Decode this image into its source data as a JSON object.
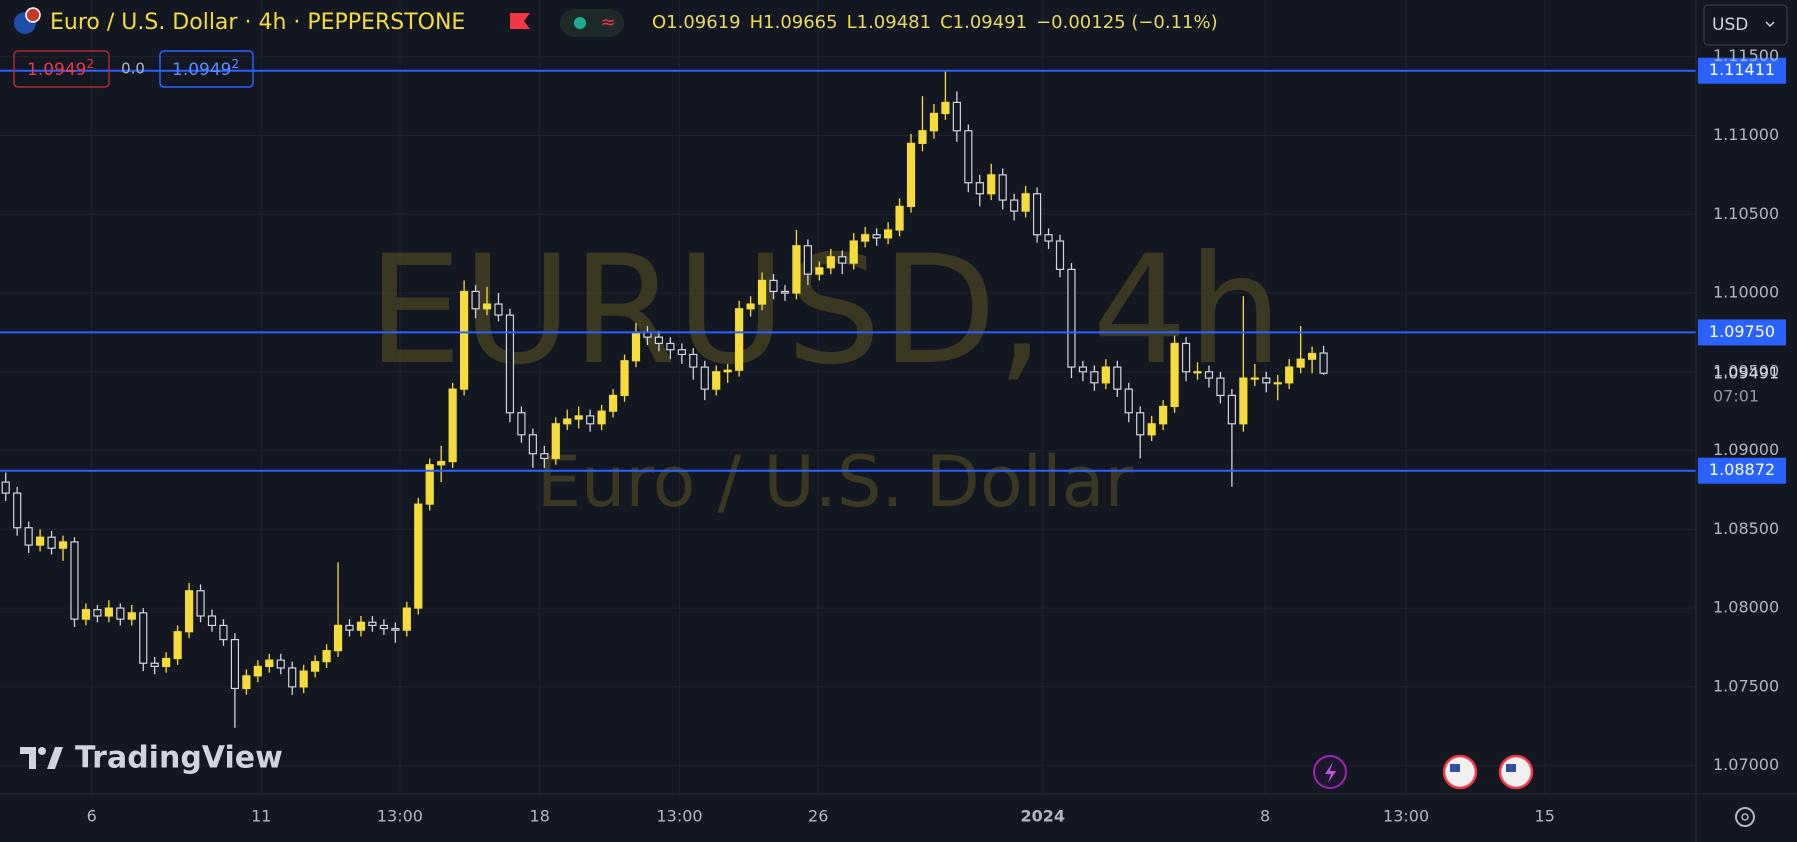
{
  "chart_data": {
    "type": "candlestick",
    "header": {
      "title": "Euro / U.S. Dollar · 4h · PEPPERSTONE",
      "legend": [
        {
          "key": "O",
          "value": "1.09619"
        },
        {
          "key": "H",
          "value": "1.09665"
        },
        {
          "key": "L",
          "value": "1.09481"
        },
        {
          "key": "C",
          "value": "1.09491"
        }
      ],
      "change": "−0.00125 (−0.11%)"
    },
    "trade_buttons": {
      "sell": {
        "main": "1.0949",
        "sup": "2"
      },
      "spread": "0.0",
      "buy": {
        "main": "1.0949",
        "sup": "2"
      }
    },
    "currency": "USD",
    "watermark": "EURUSD, 4h",
    "watermark_sub": "Euro / U.S. Dollar",
    "brand": "TradingView",
    "up_color": "#f5dc3c",
    "down_color": "#d1d4dc",
    "level_color": "#2962ff",
    "grid": true,
    "xlim": [
      -0.5,
      147.5
    ],
    "ylim": [
      1.0682,
      1.1186
    ],
    "yticks": [
      {
        "value": 1.07,
        "label": "1.07000"
      },
      {
        "value": 1.075,
        "label": "1.07500"
      },
      {
        "value": 1.08,
        "label": "1.08000"
      },
      {
        "value": 1.085,
        "label": "1.08500"
      },
      {
        "value": 1.09,
        "label": "1.09000"
      },
      {
        "value": 1.095,
        "label": "1.09500"
      },
      {
        "value": 1.1,
        "label": "1.10000"
      },
      {
        "value": 1.105,
        "label": "1.10500"
      },
      {
        "value": 1.11,
        "label": "1.11000"
      },
      {
        "value": 1.115,
        "label": "1.11500"
      }
    ],
    "xticks": [
      {
        "value": 7.5,
        "label": "6"
      },
      {
        "value": 22.3,
        "label": "11"
      },
      {
        "value": 34.4,
        "label": "13:00"
      },
      {
        "value": 46.6,
        "label": "18"
      },
      {
        "value": 58.8,
        "label": "13:00"
      },
      {
        "value": 70.9,
        "label": "26"
      },
      {
        "value": 90.5,
        "label": "2024"
      },
      {
        "value": 109.9,
        "label": "8"
      },
      {
        "value": 122.2,
        "label": "13:00"
      },
      {
        "value": 134.3,
        "label": "15"
      }
    ],
    "levels": [
      1.11411,
      {
        "value": 1.0975,
        "label": "1.09750"
      },
      1.08872
    ],
    "last_price": 1.09491,
    "countdown": "07:01",
    "ohlc": [
      [
        1.088,
        1.0886,
        1.0868,
        1.0873
      ],
      [
        1.0873,
        1.0877,
        1.0846,
        1.0851
      ],
      [
        1.0851,
        1.0855,
        1.0835,
        1.084
      ],
      [
        1.084,
        1.085,
        1.0836,
        1.0845
      ],
      [
        1.0845,
        1.0849,
        1.0834,
        1.0838
      ],
      [
        1.0838,
        1.0846,
        1.083,
        1.0842
      ],
      [
        1.0842,
        1.0845,
        1.0788,
        1.0793
      ],
      [
        1.0793,
        1.0803,
        1.0789,
        1.0799
      ],
      [
        1.0799,
        1.0802,
        1.0791,
        1.0795
      ],
      [
        1.0795,
        1.0805,
        1.0791,
        1.08
      ],
      [
        1.08,
        1.0803,
        1.0789,
        1.0793
      ],
      [
        1.0793,
        1.0802,
        1.0789,
        1.0797
      ],
      [
        1.0797,
        1.08,
        1.076,
        1.0765
      ],
      [
        1.0765,
        1.0769,
        1.0758,
        1.0763
      ],
      [
        1.0763,
        1.0772,
        1.0759,
        1.0768
      ],
      [
        1.0768,
        1.0789,
        1.0764,
        1.0785
      ],
      [
        1.0785,
        1.0816,
        1.0781,
        1.0811
      ],
      [
        1.0811,
        1.0815,
        1.0791,
        1.0795
      ],
      [
        1.0795,
        1.0799,
        1.0785,
        1.0789
      ],
      [
        1.0789,
        1.0793,
        1.0776,
        1.078
      ],
      [
        1.078,
        1.0784,
        1.0724,
        1.0749
      ],
      [
        1.0749,
        1.0761,
        1.0745,
        1.0757
      ],
      [
        1.0757,
        1.0767,
        1.0753,
        1.0763
      ],
      [
        1.0763,
        1.0771,
        1.0759,
        1.0767
      ],
      [
        1.0767,
        1.0771,
        1.0758,
        1.0762
      ],
      [
        1.0762,
        1.0766,
        1.0745,
        1.075
      ],
      [
        1.075,
        1.0764,
        1.0746,
        1.076
      ],
      [
        1.076,
        1.077,
        1.0756,
        1.0766
      ],
      [
        1.0766,
        1.0777,
        1.0762,
        1.0773
      ],
      [
        1.0773,
        1.0829,
        1.0769,
        1.0789
      ],
      [
        1.0789,
        1.0793,
        1.0782,
        1.0786
      ],
      [
        1.0786,
        1.0795,
        1.0782,
        1.0791
      ],
      [
        1.0791,
        1.0795,
        1.0785,
        1.0789
      ],
      [
        1.0789,
        1.0793,
        1.0783,
        1.0787
      ],
      [
        1.0787,
        1.0791,
        1.0778,
        1.0786
      ],
      [
        1.0786,
        1.0804,
        1.0782,
        1.08
      ],
      [
        1.08,
        1.087,
        1.0796,
        1.0866
      ],
      [
        1.0866,
        1.0895,
        1.0862,
        1.0891
      ],
      [
        1.0891,
        1.0903,
        1.088,
        1.0893
      ],
      [
        1.0893,
        1.0943,
        1.0889,
        1.0939
      ],
      [
        1.0939,
        1.1008,
        1.0935,
        1.1001
      ],
      [
        1.1001,
        1.1005,
        1.0984,
        1.099
      ],
      [
        1.099,
        1.1004,
        1.0986,
        1.0993
      ],
      [
        1.0993,
        1.1,
        1.0982,
        1.0986
      ],
      [
        1.0986,
        1.099,
        1.0918,
        1.0924
      ],
      [
        1.0924,
        1.0928,
        1.0905,
        1.091
      ],
      [
        1.091,
        1.0914,
        1.0889,
        1.0898
      ],
      [
        1.0898,
        1.0903,
        1.0889,
        1.0895
      ],
      [
        1.0895,
        1.0921,
        1.0891,
        1.0917
      ],
      [
        1.0917,
        1.0926,
        1.0913,
        1.092
      ],
      [
        1.092,
        1.0928,
        1.0914,
        1.0922
      ],
      [
        1.0922,
        1.0926,
        1.0912,
        1.0917
      ],
      [
        1.0917,
        1.0929,
        1.0913,
        1.0925
      ],
      [
        1.0925,
        1.0939,
        1.0921,
        1.0935
      ],
      [
        1.0935,
        1.0961,
        1.0931,
        1.0957
      ],
      [
        1.0957,
        1.0981,
        1.0953,
        1.0975
      ],
      [
        1.0975,
        1.0979,
        1.0967,
        1.0972
      ],
      [
        1.0972,
        1.0976,
        1.0963,
        1.0968
      ],
      [
        1.0968,
        1.0972,
        1.0958,
        1.0964
      ],
      [
        1.0964,
        1.0968,
        1.0955,
        1.0961
      ],
      [
        1.0961,
        1.0965,
        1.0945,
        1.0953
      ],
      [
        1.0953,
        1.0957,
        1.0932,
        1.0939
      ],
      [
        1.0939,
        1.0954,
        1.0935,
        1.095
      ],
      [
        1.095,
        1.0955,
        1.0943,
        1.0951
      ],
      [
        1.0951,
        1.0995,
        1.0947,
        1.099
      ],
      [
        1.099,
        1.0998,
        1.0985,
        1.0993
      ],
      [
        1.0993,
        1.1013,
        1.0989,
        1.1008
      ],
      [
        1.1008,
        1.1012,
        1.0996,
        1.1001
      ],
      [
        1.1001,
        1.1005,
        1.0995,
        1.1
      ],
      [
        1.1,
        1.104,
        1.0996,
        1.103
      ],
      [
        1.103,
        1.1034,
        1.1005,
        1.1012
      ],
      [
        1.1012,
        1.102,
        1.1008,
        1.1016
      ],
      [
        1.1016,
        1.1028,
        1.1012,
        1.1023
      ],
      [
        1.1023,
        1.1027,
        1.1012,
        1.1019
      ],
      [
        1.1019,
        1.1038,
        1.1015,
        1.1033
      ],
      [
        1.1033,
        1.1042,
        1.1029,
        1.1037
      ],
      [
        1.1037,
        1.1041,
        1.103,
        1.1035
      ],
      [
        1.1035,
        1.1045,
        1.1031,
        1.104
      ],
      [
        1.104,
        1.106,
        1.1036,
        1.1055
      ],
      [
        1.1055,
        1.1101,
        1.1051,
        1.1095
      ],
      [
        1.1095,
        1.1125,
        1.109,
        1.1103
      ],
      [
        1.1103,
        1.112,
        1.1098,
        1.1114
      ],
      [
        1.1114,
        1.1141,
        1.111,
        1.1121
      ],
      [
        1.1121,
        1.1128,
        1.1096,
        1.1103
      ],
      [
        1.1103,
        1.1107,
        1.1064,
        1.107
      ],
      [
        1.107,
        1.1075,
        1.1055,
        1.1063
      ],
      [
        1.1063,
        1.1082,
        1.1059,
        1.1075
      ],
      [
        1.1075,
        1.1079,
        1.1053,
        1.1059
      ],
      [
        1.1059,
        1.1063,
        1.1046,
        1.1052
      ],
      [
        1.1052,
        1.1068,
        1.1048,
        1.1063
      ],
      [
        1.1063,
        1.1067,
        1.1032,
        1.1037
      ],
      [
        1.1037,
        1.1041,
        1.1028,
        1.1033
      ],
      [
        1.1033,
        1.1037,
        1.101,
        1.1015
      ],
      [
        1.1015,
        1.1019,
        1.0946,
        1.0953
      ],
      [
        1.0953,
        1.0957,
        1.0944,
        1.095
      ],
      [
        1.095,
        1.0954,
        1.0938,
        1.0943
      ],
      [
        1.0943,
        1.0958,
        1.0939,
        1.0953
      ],
      [
        1.0953,
        1.0957,
        1.0934,
        1.0939
      ],
      [
        1.0939,
        1.0943,
        1.0918,
        1.0924
      ],
      [
        1.0924,
        1.0928,
        1.0895,
        1.091
      ],
      [
        1.091,
        1.0922,
        1.0906,
        1.0917
      ],
      [
        1.0917,
        1.0932,
        1.0913,
        1.0928
      ],
      [
        1.0928,
        1.0973,
        1.0924,
        1.0968
      ],
      [
        1.0968,
        1.0972,
        1.0944,
        1.095
      ],
      [
        1.095,
        1.0956,
        1.0945,
        1.095
      ],
      [
        1.095,
        1.0954,
        1.094,
        1.0946
      ],
      [
        1.0946,
        1.095,
        1.093,
        1.0935
      ],
      [
        1.0935,
        1.0939,
        1.0877,
        1.0917
      ],
      [
        1.0917,
        1.0998,
        1.0912,
        1.0946
      ],
      [
        1.0946,
        1.0955,
        1.0941,
        1.0946
      ],
      [
        1.0946,
        1.095,
        1.0937,
        1.0943
      ],
      [
        1.0943,
        1.0948,
        1.0932,
        1.0943
      ],
      [
        1.0943,
        1.0958,
        1.0939,
        1.0953
      ],
      [
        1.0953,
        1.0979,
        1.0949,
        1.0958
      ],
      [
        1.0958,
        1.0966,
        1.0949,
        1.09616
      ],
      [
        1.09619,
        1.09665,
        1.09481,
        1.09491
      ]
    ]
  }
}
